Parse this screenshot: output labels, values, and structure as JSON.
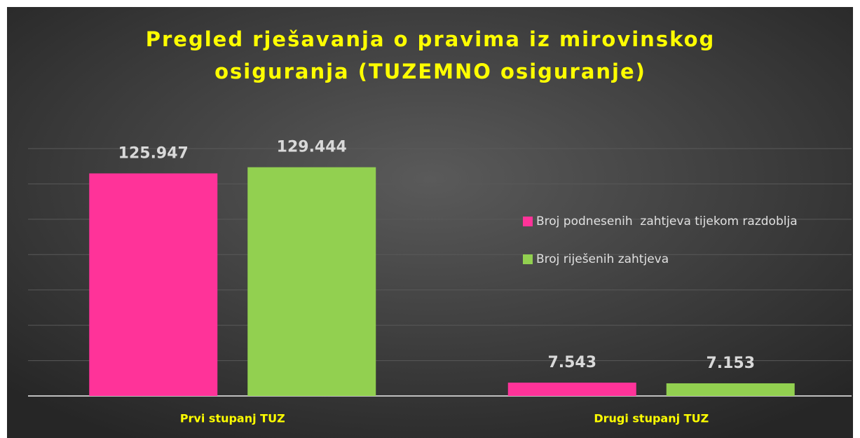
{
  "chart_data": {
    "type": "bar",
    "title": [
      "Pregled rješavanja o pravima iz mirovinskog",
      "osiguranja (TUZEMNO osiguranje)"
    ],
    "categories": [
      "Prvi stupanj TUZ",
      "Drugi stupanj TUZ"
    ],
    "series": [
      {
        "name": "Broj podnesenih  zahtjeva tijekom razdoblja",
        "color": "#ff3399",
        "values": [
          125947,
          7543
        ],
        "value_labels": [
          "125.947",
          "7.543"
        ]
      },
      {
        "name": "Broj riješenih zahtjeva",
        "color": "#92d050",
        "values": [
          129444,
          7153
        ],
        "value_labels": [
          "129.444",
          "7.153"
        ]
      }
    ],
    "ylim": [
      0,
      140000
    ],
    "yticks": [
      0,
      20000,
      40000,
      60000,
      80000,
      100000,
      120000,
      140000
    ],
    "grid": true,
    "legend": "right"
  }
}
